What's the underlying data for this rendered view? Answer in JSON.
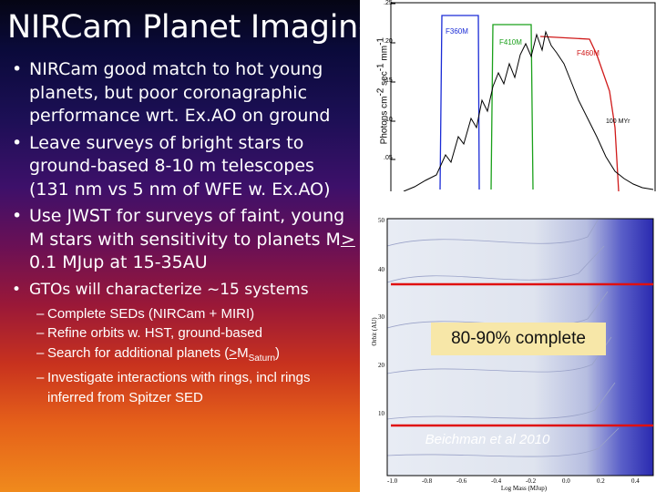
{
  "slide": {
    "title": "NIRCam Planet Imaging",
    "bullets": [
      {
        "mark": "•",
        "text": "NIRCam good match to hot young planets, but poor coronagraphic performance wrt. Ex.AO on ground"
      },
      {
        "mark": "•",
        "text": "Leave surveys of bright stars to ground-based 8-10 m telescopes (131 nm vs 5 nm of WFE w. Ex.AO)"
      },
      {
        "mark": "•",
        "text_pre": "Use JWST for surveys of faint, young M stars with sensitivity to  planets M",
        "text_ge": ">",
        "text_post": " 0.1 MJup at 15-35AU"
      },
      {
        "mark": "•",
        "text": "GTOs will characterize ~15 systems"
      }
    ],
    "sub_bullets": [
      {
        "mark": "–",
        "text": "Complete SEDs (NIRCam + MIRI)"
      },
      {
        "mark": "–",
        "text": "Refine orbits w. HST, ground-based"
      },
      {
        "mark": "–",
        "text_pre": "Search for additional planets (",
        "text_ge": ">",
        "text_m": "M",
        "text_sub": "Saturn",
        "text_post": ")"
      },
      {
        "mark": "–",
        "text": "Investigate interactions with rings, incl rings inferred from Spitzer SED"
      }
    ]
  },
  "figure_top": {
    "ylabel_pre": "Photons cm",
    "ylabel_sup1": "-2",
    "ylabel_mid": " sec",
    "ylabel_sup2": "-1",
    "ylabel_mid2": " mm",
    "ylabel_sup3": "-1",
    "yticks": [
      ".25",
      ".20",
      ".15",
      ".10",
      ".05"
    ],
    "filters": [
      {
        "name": "F360M",
        "color": "#1a2bd6"
      },
      {
        "name": "F410M",
        "color": "#1aa01a"
      },
      {
        "name": "F460M",
        "color": "#d01a1a"
      }
    ],
    "curve_label": "100 MYr"
  },
  "figure_bottom": {
    "ylabel": "Orbit (AU)",
    "xlabel": "Log Mass (MJup)",
    "yticks": [
      "50",
      "40",
      "30",
      "20",
      "10"
    ],
    "xticks": [
      "-1.0",
      "-0.8",
      "-0.6",
      "-0.4",
      "-0.2",
      "0.0",
      "0.2",
      "0.4"
    ],
    "callout": "80-90% complete",
    "citation": "Beichman et al 2010",
    "accent": "#e01010"
  }
}
